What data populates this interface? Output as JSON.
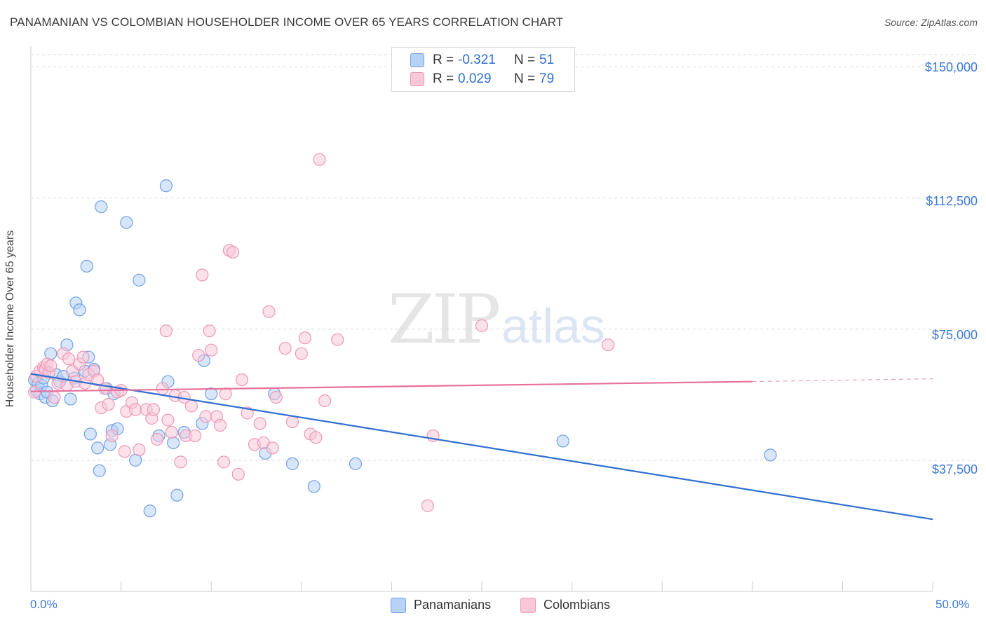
{
  "title": "PANAMANIAN VS COLOMBIAN HOUSEHOLDER INCOME OVER 65 YEARS CORRELATION CHART",
  "source": "Source: ZipAtlas.com",
  "watermark": {
    "zip": "ZIP",
    "atlas": "atlas"
  },
  "legend": {
    "rows": [
      {
        "r_label": "R =",
        "r_value": "-0.321",
        "n_label": "N =",
        "n_value": "51",
        "color": "#6fa0e6",
        "fill": "#b8d2f6"
      },
      {
        "r_label": "R =",
        "r_value": "0.029",
        "n_label": "N =",
        "n_value": "79",
        "color": "#ee97b6",
        "fill": "#f8c8d8"
      }
    ]
  },
  "bottom_legend": [
    {
      "label": "Panamanians",
      "color": "#6fa0e6",
      "fill": "#b8d2f6"
    },
    {
      "label": "Colombians",
      "color": "#ee97b6",
      "fill": "#f8c8d8"
    }
  ],
  "colors": {
    "blue_line": "#2f6fd0",
    "pink_line": "#e8709a",
    "grid": "#d8d8d8",
    "axis_text": "#3b78d8"
  },
  "chart_data": {
    "type": "scatter",
    "title": "PANAMANIAN VS COLOMBIAN HOUSEHOLDER INCOME OVER 65 YEARS CORRELATION CHART",
    "xlabel": "",
    "ylabel": "Householder Income Over 65 years",
    "xlim": [
      0,
      50
    ],
    "ylim": [
      0,
      155000
    ],
    "x_tick_labels": [
      "0.0%",
      "50.0%"
    ],
    "y_ticks": [
      37500,
      75000,
      112500,
      150000
    ],
    "y_tick_labels": [
      "$37,500",
      "$75,000",
      "$112,500",
      "$150,000"
    ],
    "grid": "horizontal dashed",
    "series": [
      {
        "name": "Panamanians",
        "color": "#6fa0e6",
        "trend": {
          "x": [
            0,
            50
          ],
          "y": [
            62200,
            20600
          ]
        },
        "points": [
          [
            0.2,
            60500
          ],
          [
            0.3,
            57500
          ],
          [
            0.4,
            59500
          ],
          [
            0.5,
            56500
          ],
          [
            0.6,
            59000
          ],
          [
            0.7,
            61000
          ],
          [
            0.8,
            55500
          ],
          [
            0.9,
            57000
          ],
          [
            1.1,
            68000
          ],
          [
            1.2,
            54500
          ],
          [
            1.4,
            62000
          ],
          [
            1.6,
            60000
          ],
          [
            1.8,
            61500
          ],
          [
            2.0,
            70500
          ],
          [
            2.2,
            55000
          ],
          [
            2.4,
            61000
          ],
          [
            2.5,
            82500
          ],
          [
            2.7,
            80500
          ],
          [
            3.0,
            63000
          ],
          [
            3.1,
            93000
          ],
          [
            3.2,
            67000
          ],
          [
            3.3,
            45000
          ],
          [
            3.5,
            63500
          ],
          [
            3.7,
            41000
          ],
          [
            3.8,
            34500
          ],
          [
            3.9,
            110000
          ],
          [
            4.2,
            58000
          ],
          [
            4.4,
            42000
          ],
          [
            4.5,
            46000
          ],
          [
            4.6,
            56500
          ],
          [
            4.8,
            46500
          ],
          [
            5.3,
            105500
          ],
          [
            5.8,
            37500
          ],
          [
            6.0,
            89000
          ],
          [
            6.6,
            23000
          ],
          [
            7.1,
            44500
          ],
          [
            7.5,
            116000
          ],
          [
            7.6,
            60000
          ],
          [
            7.9,
            42500
          ],
          [
            8.1,
            27500
          ],
          [
            8.5,
            45500
          ],
          [
            9.5,
            48000
          ],
          [
            9.6,
            66000
          ],
          [
            10.0,
            56500
          ],
          [
            13.0,
            39500
          ],
          [
            13.5,
            56500
          ],
          [
            14.5,
            36500
          ],
          [
            15.7,
            30000
          ],
          [
            18.0,
            36500
          ],
          [
            29.5,
            43000
          ],
          [
            41.0,
            39000
          ]
        ]
      },
      {
        "name": "Colombians",
        "color": "#ee97b6",
        "trend": {
          "x": [
            0,
            40
          ],
          "y": [
            57200,
            60000
          ]
        },
        "trend_dashed": {
          "x": [
            40,
            50
          ],
          "y": [
            60000,
            60800
          ]
        },
        "points": [
          [
            0.2,
            57000
          ],
          [
            0.3,
            61500
          ],
          [
            0.5,
            63000
          ],
          [
            0.7,
            64000
          ],
          [
            0.8,
            63500
          ],
          [
            0.9,
            65000
          ],
          [
            1.0,
            62500
          ],
          [
            1.1,
            64500
          ],
          [
            1.3,
            55500
          ],
          [
            1.5,
            59500
          ],
          [
            1.8,
            68000
          ],
          [
            2.0,
            59000
          ],
          [
            2.1,
            66500
          ],
          [
            2.3,
            63000
          ],
          [
            2.5,
            60000
          ],
          [
            2.7,
            65000
          ],
          [
            2.9,
            67000
          ],
          [
            3.0,
            59500
          ],
          [
            3.2,
            62000
          ],
          [
            3.5,
            63000
          ],
          [
            3.7,
            60500
          ],
          [
            3.9,
            52500
          ],
          [
            4.1,
            58000
          ],
          [
            4.3,
            53500
          ],
          [
            4.5,
            44500
          ],
          [
            4.8,
            57000
          ],
          [
            5.0,
            57500
          ],
          [
            5.2,
            40000
          ],
          [
            5.3,
            51500
          ],
          [
            5.6,
            54000
          ],
          [
            5.8,
            52000
          ],
          [
            6.0,
            40500
          ],
          [
            6.4,
            52000
          ],
          [
            6.7,
            49500
          ],
          [
            6.8,
            52000
          ],
          [
            7.0,
            43500
          ],
          [
            7.3,
            58000
          ],
          [
            7.5,
            74500
          ],
          [
            7.6,
            49000
          ],
          [
            7.8,
            45500
          ],
          [
            8.0,
            56000
          ],
          [
            8.3,
            37000
          ],
          [
            8.5,
            55500
          ],
          [
            8.6,
            44500
          ],
          [
            8.9,
            53000
          ],
          [
            9.1,
            44500
          ],
          [
            9.3,
            67500
          ],
          [
            9.5,
            90500
          ],
          [
            9.7,
            50000
          ],
          [
            9.9,
            74500
          ],
          [
            10.0,
            69000
          ],
          [
            10.3,
            50000
          ],
          [
            10.5,
            47500
          ],
          [
            10.7,
            37000
          ],
          [
            10.8,
            56500
          ],
          [
            11.0,
            97500
          ],
          [
            11.2,
            97000
          ],
          [
            11.5,
            33500
          ],
          [
            11.7,
            60500
          ],
          [
            12.0,
            51000
          ],
          [
            12.4,
            42000
          ],
          [
            12.7,
            48000
          ],
          [
            12.9,
            42500
          ],
          [
            13.2,
            80000
          ],
          [
            13.4,
            41000
          ],
          [
            13.6,
            55500
          ],
          [
            14.1,
            69500
          ],
          [
            14.5,
            48500
          ],
          [
            15.0,
            68000
          ],
          [
            15.2,
            72500
          ],
          [
            15.5,
            45000
          ],
          [
            15.8,
            44000
          ],
          [
            16.0,
            123500
          ],
          [
            16.3,
            54500
          ],
          [
            17.0,
            72000
          ],
          [
            22.0,
            24500
          ],
          [
            22.3,
            44500
          ],
          [
            25.0,
            76000
          ],
          [
            32.0,
            70500
          ]
        ]
      }
    ]
  }
}
